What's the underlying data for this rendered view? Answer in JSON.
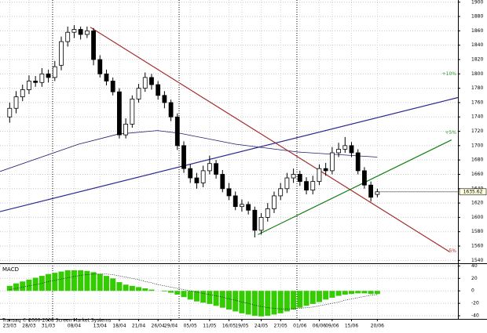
{
  "chart_data": [
    {
      "type": "candlestick",
      "x": [
        0,
        1,
        2,
        3,
        4,
        5,
        6,
        7,
        8,
        9,
        10,
        11,
        12,
        13,
        14,
        15,
        16,
        17,
        18,
        19,
        20,
        21,
        22,
        23,
        24,
        25,
        26,
        27,
        28,
        29,
        30,
        31,
        32,
        33,
        34,
        35,
        36,
        37,
        38,
        39,
        40,
        41,
        42,
        43,
        44,
        45,
        46,
        47,
        48,
        49,
        50,
        51,
        52,
        53,
        54,
        55,
        56,
        57
      ],
      "open": [
        1740,
        1752,
        1768,
        1778,
        1790,
        1788,
        1800,
        1795,
        1812,
        1845,
        1858,
        1862,
        1855,
        1860,
        1820,
        1800,
        1790,
        1775,
        1715,
        1730,
        1765,
        1780,
        1795,
        1785,
        1770,
        1760,
        1740,
        1700,
        1668,
        1655,
        1648,
        1665,
        1675,
        1660,
        1640,
        1630,
        1615,
        1618,
        1610,
        1582,
        1600,
        1612,
        1630,
        1640,
        1655,
        1660,
        1650,
        1638,
        1650,
        1668,
        1665,
        1690,
        1695,
        1700,
        1690,
        1665,
        1645,
        1632
      ],
      "high": [
        1760,
        1776,
        1785,
        1798,
        1797,
        1808,
        1806,
        1818,
        1852,
        1866,
        1868,
        1866,
        1866,
        1864,
        1826,
        1806,
        1795,
        1780,
        1738,
        1770,
        1786,
        1802,
        1800,
        1790,
        1776,
        1764,
        1745,
        1706,
        1674,
        1662,
        1672,
        1686,
        1680,
        1666,
        1648,
        1636,
        1625,
        1622,
        1615,
        1606,
        1620,
        1636,
        1648,
        1662,
        1668,
        1665,
        1656,
        1658,
        1674,
        1676,
        1698,
        1704,
        1712,
        1705,
        1695,
        1670,
        1650,
        1640
      ],
      "low": [
        1732,
        1745,
        1762,
        1772,
        1782,
        1782,
        1788,
        1790,
        1805,
        1838,
        1850,
        1848,
        1850,
        1812,
        1795,
        1784,
        1770,
        1710,
        1710,
        1725,
        1760,
        1775,
        1778,
        1764,
        1752,
        1734,
        1694,
        1662,
        1648,
        1640,
        1642,
        1660,
        1654,
        1635,
        1624,
        1610,
        1608,
        1604,
        1572,
        1576,
        1594,
        1606,
        1624,
        1634,
        1648,
        1644,
        1632,
        1632,
        1645,
        1658,
        1660,
        1684,
        1690,
        1684,
        1660,
        1640,
        1622,
        1628
      ],
      "close": [
        1752,
        1768,
        1778,
        1790,
        1788,
        1800,
        1795,
        1810,
        1845,
        1858,
        1862,
        1855,
        1860,
        1820,
        1800,
        1790,
        1775,
        1715,
        1730,
        1765,
        1780,
        1795,
        1785,
        1770,
        1760,
        1740,
        1700,
        1668,
        1655,
        1648,
        1665,
        1675,
        1660,
        1640,
        1630,
        1615,
        1618,
        1610,
        1582,
        1600,
        1612,
        1630,
        1640,
        1655,
        1660,
        1650,
        1638,
        1650,
        1668,
        1665,
        1690,
        1695,
        1700,
        1690,
        1665,
        1645,
        1628,
        1635.62
      ],
      "xlim": [
        -1.5,
        69.5
      ],
      "ylim": [
        1536,
        1903
      ],
      "yticks": [
        1540,
        1560,
        1580,
        1600,
        1620,
        1640,
        1660,
        1680,
        1700,
        1720,
        1740,
        1760,
        1780,
        1800,
        1820,
        1840,
        1860,
        1880,
        1900
      ],
      "xticks": [
        {
          "value": 0,
          "label": "23/03"
        },
        {
          "value": 3,
          "label": "28/03"
        },
        {
          "value": 6,
          "label": "31/03"
        },
        {
          "value": 10,
          "label": "08/04"
        },
        {
          "value": 14,
          "label": "13/04"
        },
        {
          "value": 17,
          "label": "18/04"
        },
        {
          "value": 20,
          "label": "21/04"
        },
        {
          "value": 23,
          "label": "26/04"
        },
        {
          "value": 25,
          "label": "29/04"
        },
        {
          "value": 28,
          "label": "05/05"
        },
        {
          "value": 31,
          "label": "11/05"
        },
        {
          "value": 34,
          "label": "16/05"
        },
        {
          "value": 36,
          "label": "19/05"
        },
        {
          "value": 39,
          "label": "24/05"
        },
        {
          "value": 42,
          "label": "27/05"
        },
        {
          "value": 45,
          "label": "01/06"
        },
        {
          "value": 48,
          "label": "06/06"
        },
        {
          "value": 50,
          "label": "09/06"
        },
        {
          "value": 53,
          "label": "15/06"
        },
        {
          "value": 57,
          "label": "20/06"
        }
      ],
      "grid": true,
      "moving_average": {
        "color": "#1c1c6e",
        "x": [
          -1.5,
          10.7,
          16.8,
          22.9,
          26.5,
          35,
          44.8,
          57
        ],
        "values": [
          1664,
          1702,
          1716,
          1721,
          1717,
          1702,
          1691,
          1684
        ]
      },
      "trend_lines": [
        {
          "color": "#a52a2a",
          "x": [
            12.5,
            68.2
          ],
          "y": [
            1865,
            1552
          ]
        },
        {
          "color": "#138013",
          "x": [
            38.5,
            68.5
          ],
          "y": [
            1576,
            1708
          ]
        },
        {
          "color": "#2a2a8c",
          "x": [
            -1.5,
            69.5
          ],
          "y": [
            1608,
            1767
          ]
        }
      ],
      "annotations": [
        {
          "text": "+10%",
          "y": 1800,
          "color": "#2e9a2e"
        },
        {
          "text": "+5%",
          "y": 1718,
          "color": "#2e9a2e"
        },
        {
          "text": "-5%",
          "y": 1553,
          "color": "#c02020"
        }
      ]
    },
    {
      "type": "bar",
      "title": "MACD",
      "x": [
        0,
        1,
        2,
        3,
        4,
        5,
        6,
        7,
        8,
        9,
        10,
        11,
        12,
        13,
        14,
        15,
        16,
        17,
        18,
        19,
        20,
        21,
        22,
        23,
        24,
        25,
        26,
        27,
        28,
        29,
        30,
        31,
        32,
        33,
        34,
        35,
        36,
        37,
        38,
        39,
        40,
        41,
        42,
        43,
        44,
        45,
        46,
        47,
        48,
        49,
        50,
        51,
        52,
        53,
        54,
        55,
        56,
        57
      ],
      "values": [
        8,
        12,
        15,
        18,
        21,
        24,
        27,
        29,
        31,
        33,
        33,
        33,
        32,
        30,
        27,
        24,
        20,
        14,
        10,
        8,
        6,
        4,
        2,
        0,
        -1,
        -3,
        -6,
        -10,
        -14,
        -17,
        -19,
        -21,
        -24,
        -27,
        -30,
        -33,
        -36,
        -38,
        -40,
        -41,
        -40,
        -38,
        -36,
        -33,
        -30,
        -27,
        -24,
        -21,
        -18,
        -14,
        -11,
        -8,
        -6,
        -5,
        -4,
        -4,
        -5,
        -5
      ],
      "color": "#33cc00",
      "signal": {
        "color": "#000000",
        "values": [
          2,
          4,
          6,
          8,
          10,
          12,
          15,
          17,
          19,
          21,
          23,
          25,
          26,
          27,
          27,
          27,
          26,
          24,
          22,
          20,
          18,
          15,
          13,
          10,
          8,
          6,
          4,
          2,
          0,
          -2,
          -4,
          -6,
          -8,
          -10,
          -13,
          -15,
          -18,
          -20,
          -23,
          -25,
          -27,
          -28,
          -29,
          -29,
          -29,
          -28,
          -27,
          -26,
          -24,
          -22,
          -20,
          -18,
          -15,
          -13,
          -11,
          -9,
          -7,
          -6
        ]
      },
      "xlim": [
        -1.5,
        69.5
      ],
      "ylim": [
        -45,
        43
      ],
      "yticks": [
        -40,
        -20,
        0,
        20,
        40
      ],
      "grid": true
    }
  ],
  "footer": "Transaq © 2000-2008 Screen Market Systems"
}
